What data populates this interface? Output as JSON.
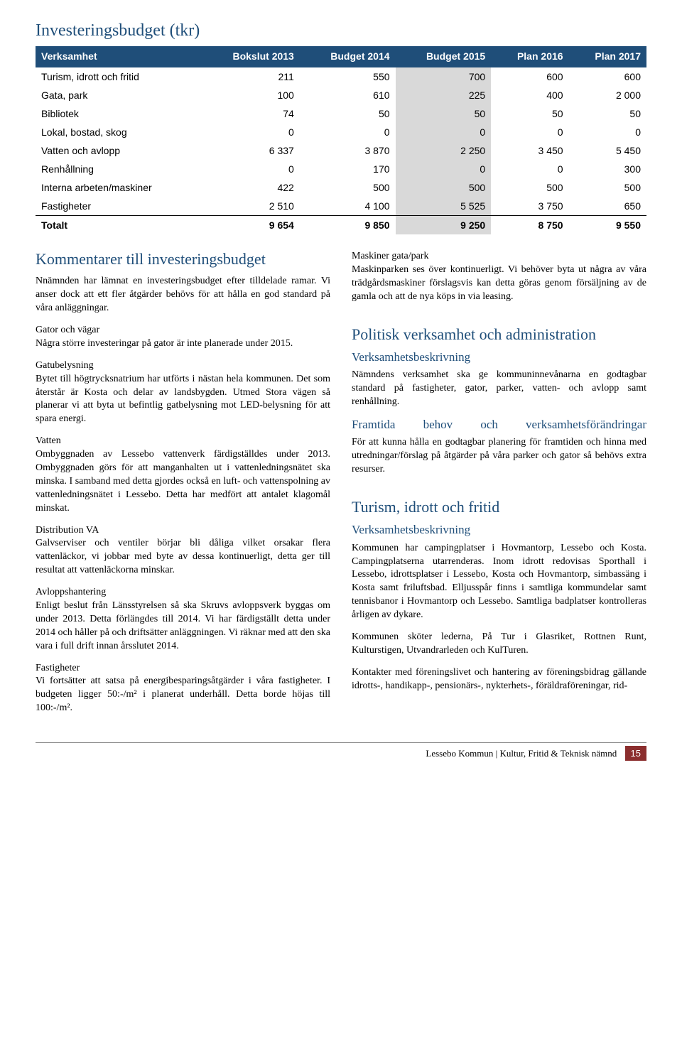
{
  "title": "Investeringsbudget (tkr)",
  "table": {
    "columns": [
      "Verksamhet",
      "Bokslut 2013",
      "Budget 2014",
      "Budget 2015",
      "Plan 2016",
      "Plan 2017"
    ],
    "highlight_cols": [
      3
    ],
    "rows": [
      [
        "Turism, idrott och fritid",
        "211",
        "550",
        "700",
        "600",
        "600"
      ],
      [
        "Gata, park",
        "100",
        "610",
        "225",
        "400",
        "2 000"
      ],
      [
        "Bibliotek",
        "74",
        "50",
        "50",
        "50",
        "50"
      ],
      [
        "Lokal, bostad, skog",
        "0",
        "0",
        "0",
        "0",
        "0"
      ],
      [
        "Vatten och avlopp",
        "6 337",
        "3 870",
        "2 250",
        "3 450",
        "5 450"
      ],
      [
        "Renhållning",
        "0",
        "170",
        "0",
        "0",
        "300"
      ],
      [
        "Interna arbeten/maskiner",
        "422",
        "500",
        "500",
        "500",
        "500"
      ],
      [
        "Fastigheter",
        "2 510",
        "4 100",
        "5 525",
        "3 750",
        "650"
      ]
    ],
    "total": [
      "Totalt",
      "9 654",
      "9 850",
      "9 250",
      "8 750",
      "9 550"
    ]
  },
  "left": {
    "h2a": "Kommentarer till investerings­budget",
    "p1": "Nnämnden har lämnat en investeringsbudget efter tilldelade ramar. Vi anser dock att ett fler åtgärder behövs för att hålla en god standard på våra anläggningar.",
    "s1t": "Gator och vägar",
    "s1p": "Några större investeringar på gator är inte planerade under 2015.",
    "s2t": "Gatubelysning",
    "s2p": "Bytet till högtrycksnatrium har utförts i nästan hela kommunen. Det som återstår är Kosta och delar av landsbygden. Utmed Stora vägen så planerar vi att byta ut befintlig gatbelysning mot LED-belysning för att spara energi.",
    "s3t": "Vatten",
    "s3p": "Ombyggnaden av Lessebo vattenverk färdigställdes under 2013. Ombyggnaden görs för att manganhalten ut i vattenledningsnätet ska minska. I samband med detta gjordes också en luft- och vattenspolning av vattenledningsnätet i Lessebo. Detta har medfört att antalet klagomål minskat.",
    "s4t": "Distribution VA",
    "s4p": "Galvserviser och ventiler börjar bli dåliga vilket orsakar flera vattenläckor, vi jobbar med byte av dessa kontinuerligt, detta ger till resultat att vattenläckorna minskar.",
    "s5t": "Avloppshantering",
    "s5p": "Enligt beslut från Länsstyrelsen så ska Skruvs avloppsverk byggas om under 2013. Detta förlängdes till 2014. Vi har färdigställt detta under 2014 och håller på och driftsätter anläggningen. Vi räknar med att den ska vara i full drift innan årsslutet 2014.",
    "s6t": "Fastigheter",
    "s6p": "Vi fortsätter att satsa på energibesparingsåtgärder i våra fastigheter. I budgeten ligger 50:-/m² i planerat underhåll. Detta borde höjas till 100:-/m²."
  },
  "right": {
    "s1t": "Maskiner gata/park",
    "s1p": "Maskinparken ses över kontinuerligt. Vi behöver byta ut några av våra trädgårdsmaskiner förslagsvis kan detta göras genom försäljning av de gamla och att de nya köps in via leasing.",
    "h2a": "Politisk verksamhet och administration",
    "h3a": "Verksamhetsbeskrivning",
    "p2": "Nämndens verksamhet ska ge kommuninnevånarna en godtagbar standard på fastigheter, gator, parker, vatten- och avlopp samt renhållning.",
    "h3b": "Framtida behov och verksamhetsförändringar",
    "p3": "För att kunna hålla en godtagbar planering för framtiden och hinna med utredningar/förslag på åtgärder på våra parker och gator så behövs extra resurser.",
    "h2b": "Turism, idrott och fritid",
    "h3c": "Verksamhetsbeskrivning",
    "p4": "Kommunen har campingplatser i Hovmantorp, Lessebo och Kosta. Campingplatserna utarrenderas. Inom idrott redovisas Sporthall i Lessebo, idrottsplatser i Lessebo, Kosta och Hovmantorp, simbassäng i Kosta samt friluftsbad. Elljusspår finns i samtliga kommundelar samt tennisbanor i Hovmantorp och Lessebo. Samtliga badplatser kontrolleras årligen av dykare.",
    "p5": "Kommunen sköter lederna, På Tur i Glasriket, Rottnen Runt, Kulturstigen, Utvandrarleden och KulTuren.",
    "p6": "Kontakter med föreningslivet och hantering av föreningsbidrag gällande idrotts-, handikapp-, pensionärs-, nykterhets-, föräldraföreningar, rid-"
  },
  "footer": {
    "text": "Lessebo Kommun | Kultur, Fritid & Teknisk nämnd",
    "page": "15"
  }
}
